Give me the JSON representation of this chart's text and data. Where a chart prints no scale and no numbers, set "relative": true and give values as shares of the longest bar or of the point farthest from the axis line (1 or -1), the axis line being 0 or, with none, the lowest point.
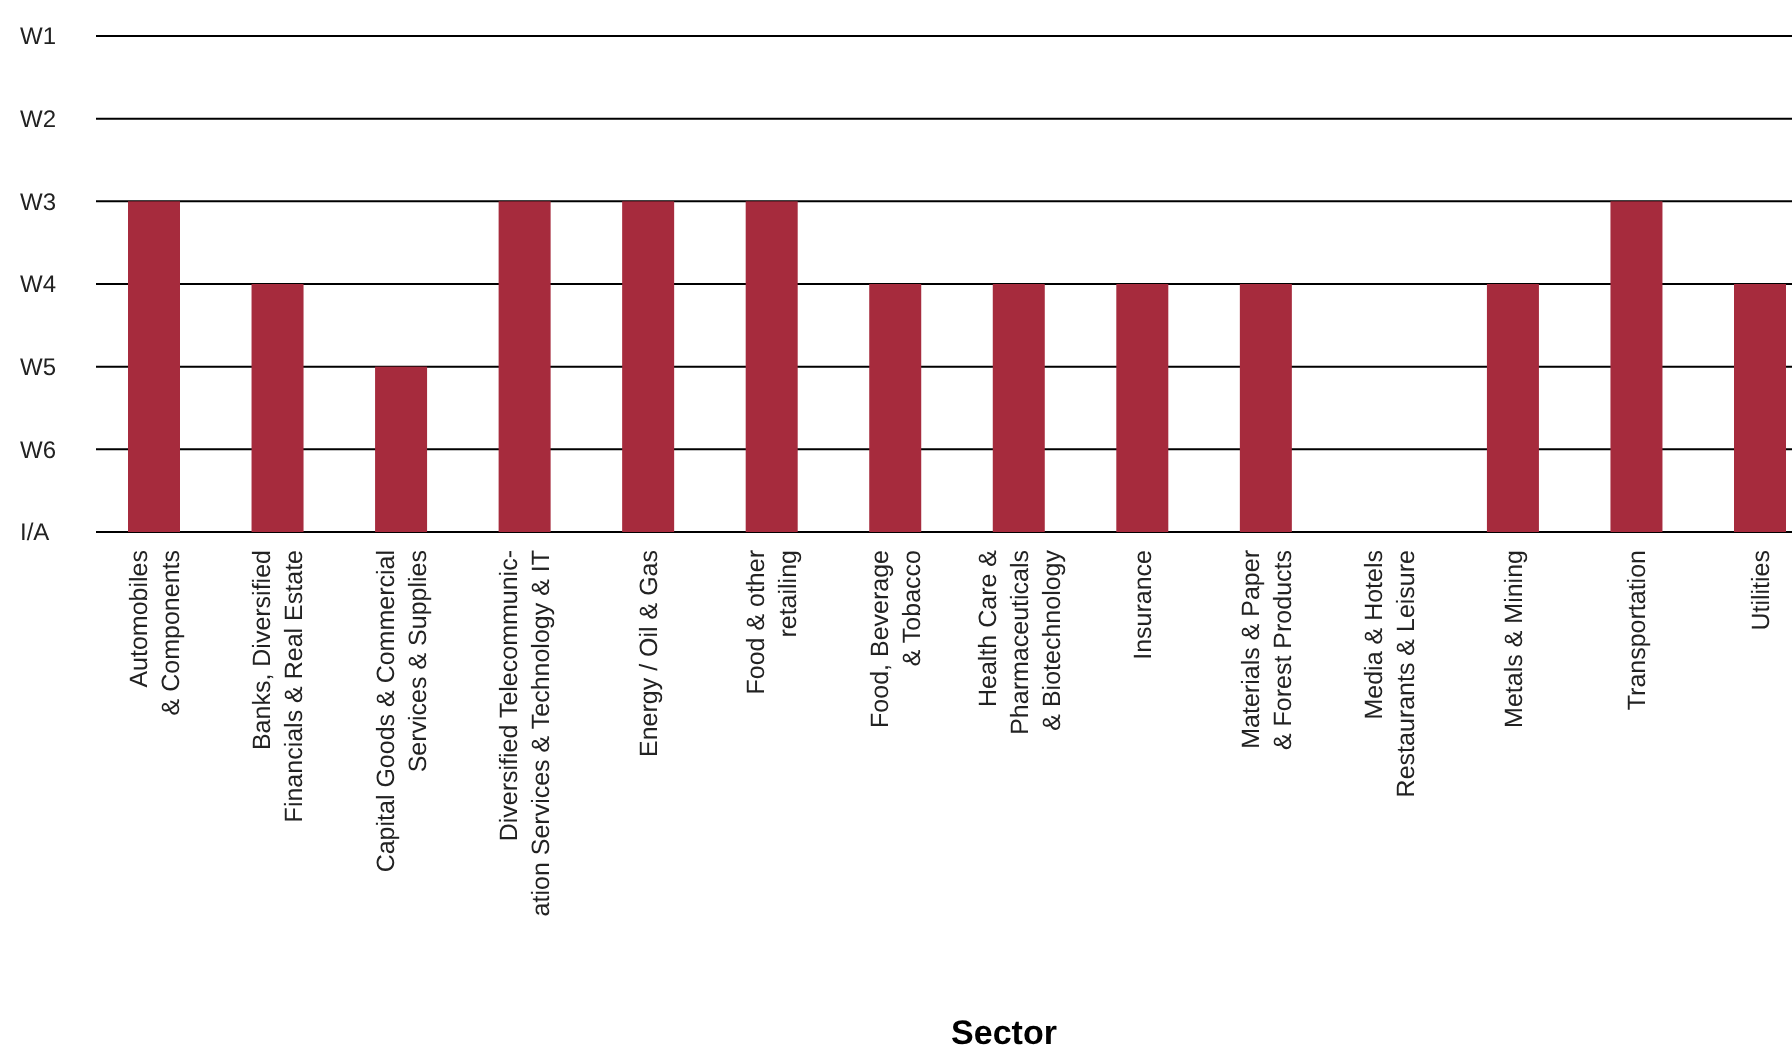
{
  "chart_data": {
    "type": "bar",
    "xlabel": "Sector",
    "relative": true,
    "categories": [
      "Automobiles\n& Components",
      "Banks, Diversified\nFinancials & Real Estate",
      "Capital Goods & Commercial\nServices & Supplies",
      "Diversified Telecommunic-\nation Services & Technology & IT",
      "Energy / Oil & Gas",
      "Food & other\nretailing",
      "Food, Beverage\n& Tobacco",
      "Health Care &\nPharmaceuticals\n& Biotechnology",
      "Insurance",
      "Materials & Paper\n& Forest Products",
      "Media & Hotels\nRestaurants &  Leisure",
      "Metals & Mining",
      "Transportation",
      "Utilities"
    ],
    "values": [
      1,
      0.75,
      0.5,
      1,
      1,
      1,
      0.75,
      0.75,
      0.75,
      0.75,
      0,
      0.75,
      1,
      0.75
    ],
    "color": "#a62b3d",
    "ref_lines": [
      {
        "axis": "y",
        "value": 0,
        "label": "I/A"
      },
      {
        "axis": "y",
        "value": 0.25,
        "label": "W6"
      },
      {
        "axis": "y",
        "value": 0.5,
        "label": "W5"
      },
      {
        "axis": "y",
        "value": 0.75,
        "label": "W4"
      },
      {
        "axis": "y",
        "value": 1,
        "label": "W3"
      },
      {
        "axis": "y",
        "value": 1.25,
        "label": "W2"
      },
      {
        "axis": "y",
        "value": 1.5,
        "label": "W1"
      }
    ]
  }
}
